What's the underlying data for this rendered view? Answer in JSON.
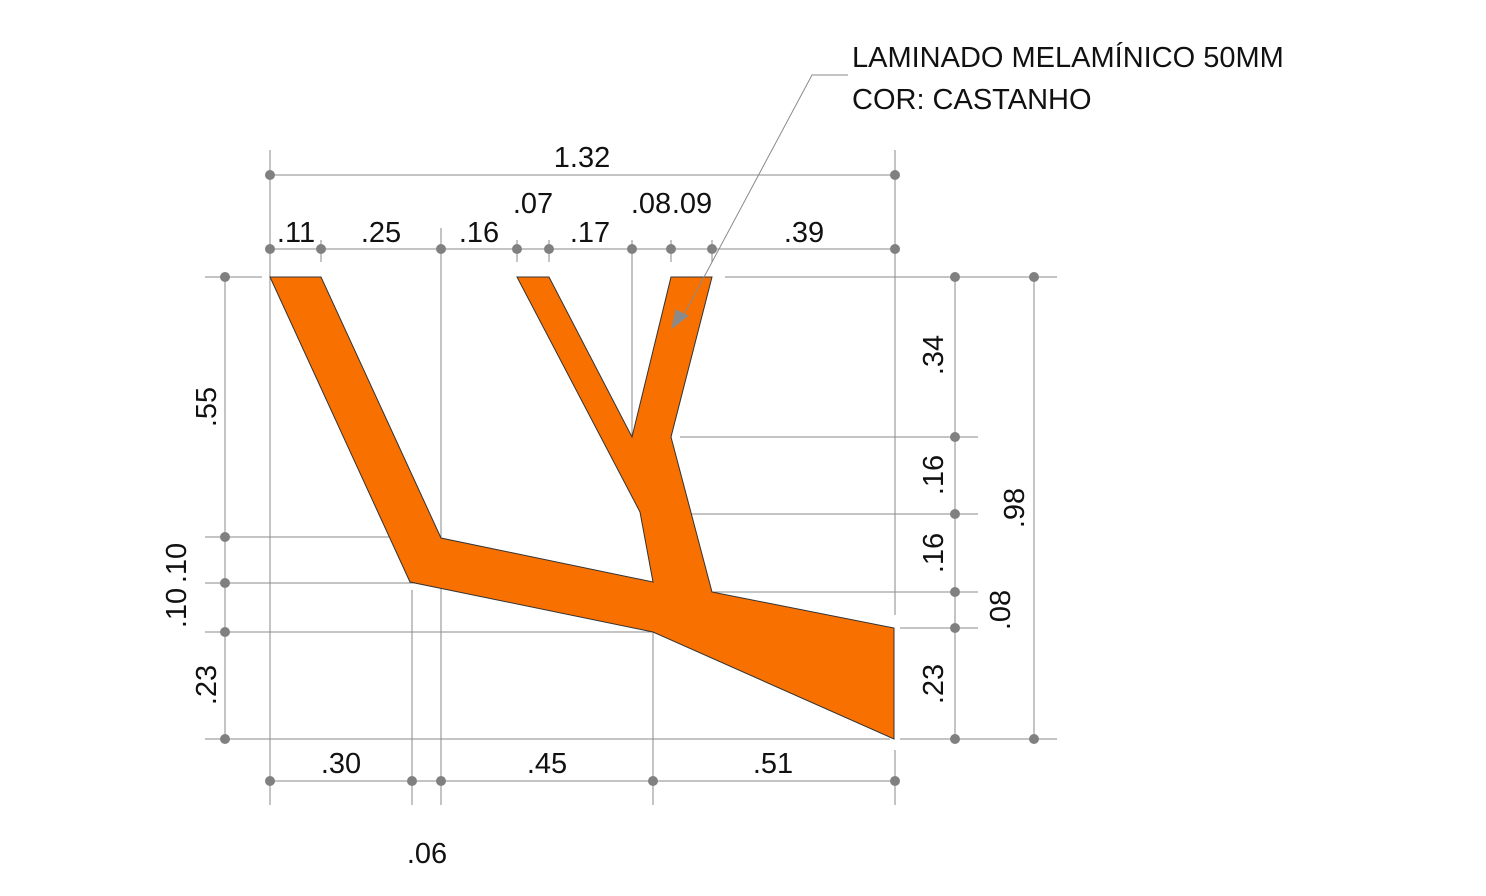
{
  "note": {
    "line1": "LAMINADO MELAMÍNICO 50MM",
    "line2": "COR: CASTANHO"
  },
  "dimensions": {
    "overall_width": "1.32",
    "top": [
      ".11",
      ".25",
      ".16",
      ".07",
      ".17",
      ".08",
      ".09",
      ".39"
    ],
    "left": [
      ".55",
      ".10",
      ".10",
      ".23"
    ],
    "right": [
      ".34",
      ".16",
      ".16",
      ".08",
      ".23",
      ".98"
    ],
    "bottom": [
      ".30",
      ".06",
      ".45",
      ".51"
    ]
  }
}
